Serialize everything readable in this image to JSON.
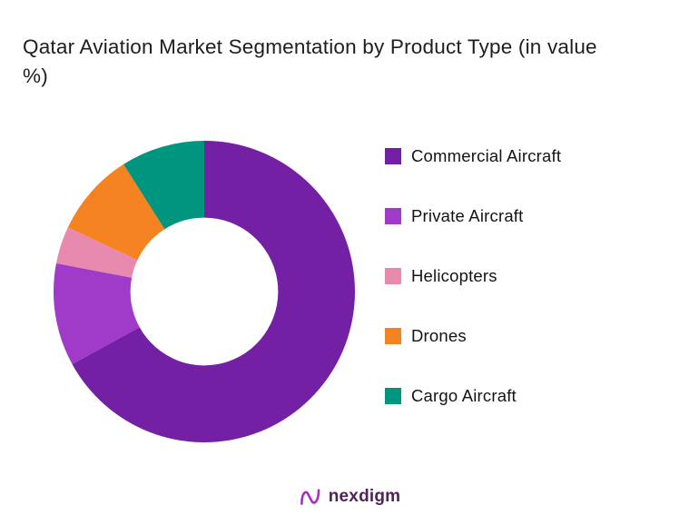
{
  "title": "Qatar Aviation Market Segmentation by Product Type (in value %)",
  "chart_data": {
    "type": "pie",
    "subtype": "donut",
    "title": "Qatar Aviation Market Segmentation by Product Type (in value %)",
    "unit": "%",
    "legend_position": "right",
    "start_angle_deg": 0,
    "direction": "clockwise",
    "inner_radius_ratio": 0.49,
    "data_labels_shown": false,
    "segments": [
      {
        "id": "commercial-aircraft",
        "label": "Commercial Aircraft",
        "value": 67,
        "color": "#7420A5"
      },
      {
        "id": "private-aircraft",
        "label": "Private Aircraft",
        "value": 11,
        "color": "#9F3BC8"
      },
      {
        "id": "helicopters",
        "label": "Helicopters",
        "value": 4,
        "color": "#E889AE"
      },
      {
        "id": "drones",
        "label": "Drones",
        "value": 9,
        "color": "#F58321"
      },
      {
        "id": "cargo-aircraft",
        "label": "Cargo Aircraft",
        "value": 9,
        "color": "#00957F"
      }
    ]
  },
  "logo": {
    "text": "nexdigm",
    "icon_color": "#A82CC8"
  }
}
